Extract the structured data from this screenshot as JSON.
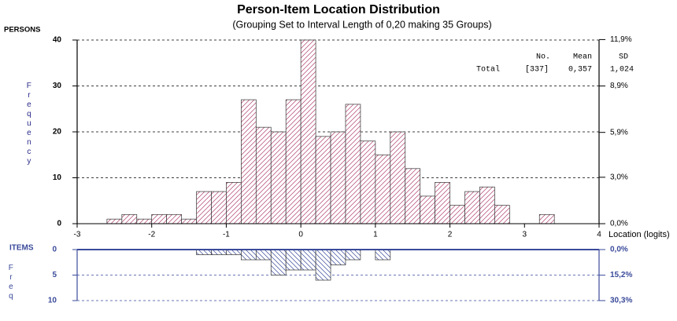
{
  "chart_data": [
    {
      "type": "histogram",
      "title": "Person-Item Location Distribution",
      "subtitle": "(Grouping Set to Interval Length of  0,20  making  35  Groups)",
      "y_label": "PERSONS",
      "y_axis_title": "Frequency",
      "x_label": "Location (logits)",
      "bins": [
        -2.6,
        -2.4,
        -2.2,
        -2.0,
        -1.8,
        -1.6,
        -1.4,
        -1.2,
        -1.0,
        -0.8,
        -0.6,
        -0.4,
        -0.2,
        0,
        0.2,
        0.4,
        0.6,
        0.8,
        1.0,
        1.2,
        1.4,
        1.6,
        1.8,
        2.0,
        2.2,
        2.4,
        2.6,
        2.8,
        3.0,
        3.2,
        3.4
      ],
      "values": [
        1,
        2,
        1,
        2,
        2,
        1,
        7,
        7,
        9,
        27,
        21,
        20,
        27,
        40,
        19,
        20,
        26,
        18,
        15,
        20,
        12,
        6,
        9,
        4,
        7,
        8,
        4,
        0,
        0,
        2
      ],
      "color": "#b0406e",
      "direction": "up",
      "xlim": [
        -3,
        4
      ],
      "xticks": [
        -3,
        -2,
        -1,
        0,
        1,
        2,
        3,
        4
      ],
      "ylim": [
        0,
        40
      ],
      "yticks": [
        0,
        10,
        20,
        30,
        40
      ],
      "y2lim": [
        0,
        11.87
      ],
      "y2ticks": [
        {
          "value": 0,
          "label": "0,0%"
        },
        {
          "value": 3.0,
          "label": "3,0%"
        },
        {
          "value": 5.9,
          "label": "5,9%"
        },
        {
          "value": 8.9,
          "label": "8,9%"
        },
        {
          "value": 11.9,
          "label": "11,9%"
        }
      ],
      "grid": true,
      "summary": {
        "columns": [
          "No.",
          "Mean",
          "SD"
        ],
        "row_label": "Total",
        "row": [
          "[337]",
          "0,357",
          "1,024"
        ]
      }
    },
    {
      "type": "histogram",
      "y_label": "ITEMS",
      "y_axis_title": "Freq",
      "bins": [
        -1.4,
        -1.2,
        -1.0,
        -0.8,
        -0.6,
        -0.4,
        -0.2,
        0,
        0.2,
        0.4,
        0.6,
        0.8,
        1.0,
        1.2
      ],
      "values": [
        1,
        1,
        1,
        2,
        2,
        5,
        4,
        4,
        6,
        3,
        2,
        0,
        2
      ],
      "color": "#3a4a9a",
      "direction": "down",
      "xlim": [
        -3,
        4
      ],
      "ylim": [
        0,
        10
      ],
      "yticks": [
        0,
        5,
        10
      ],
      "y2lim": [
        0,
        30.3
      ],
      "y2ticks": [
        {
          "value": 0,
          "label": "0,0%"
        },
        {
          "value": 15.2,
          "label": "15,2%"
        },
        {
          "value": 30.3,
          "label": "30,3%"
        }
      ],
      "grid": true
    }
  ]
}
